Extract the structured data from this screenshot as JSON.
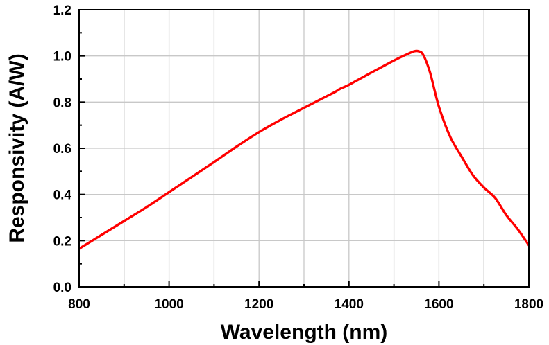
{
  "chart_data": {
    "type": "line",
    "title": "",
    "xlabel": "Wavelength (nm)",
    "ylabel": "Responsivity (A/W)",
    "xlim": [
      800,
      1800
    ],
    "ylim": [
      0.0,
      1.2
    ],
    "x_major_ticks": [
      800,
      1000,
      1200,
      1400,
      1600,
      1800
    ],
    "x_tick_labels": [
      "800",
      "1000",
      "1200",
      "1400",
      "1600",
      "1800"
    ],
    "y_major_ticks": [
      0.0,
      0.2,
      0.4,
      0.6,
      0.8,
      1.0,
      1.2
    ],
    "y_tick_labels": [
      "0.0",
      "0.2",
      "0.4",
      "0.6",
      "0.8",
      "1.0",
      "1.2"
    ],
    "x_grid_step": 100,
    "y_grid_step": 0.2,
    "grid": true,
    "legend": "none",
    "series": [
      {
        "name": "Responsivity",
        "color": "#ff0000",
        "x": [
          800,
          850,
          900,
          950,
          1000,
          1050,
          1100,
          1150,
          1200,
          1250,
          1300,
          1350,
          1370,
          1380,
          1400,
          1450,
          1500,
          1530,
          1545,
          1555,
          1565,
          1580,
          1600,
          1625,
          1650,
          1675,
          1700,
          1725,
          1750,
          1775,
          1800
        ],
        "y": [
          0.165,
          0.225,
          0.285,
          0.345,
          0.41,
          0.475,
          0.54,
          0.607,
          0.67,
          0.725,
          0.775,
          0.825,
          0.845,
          0.857,
          0.875,
          0.928,
          0.98,
          1.008,
          1.02,
          1.02,
          1.005,
          0.93,
          0.78,
          0.65,
          0.565,
          0.485,
          0.43,
          0.385,
          0.31,
          0.25,
          0.18
        ]
      }
    ]
  }
}
